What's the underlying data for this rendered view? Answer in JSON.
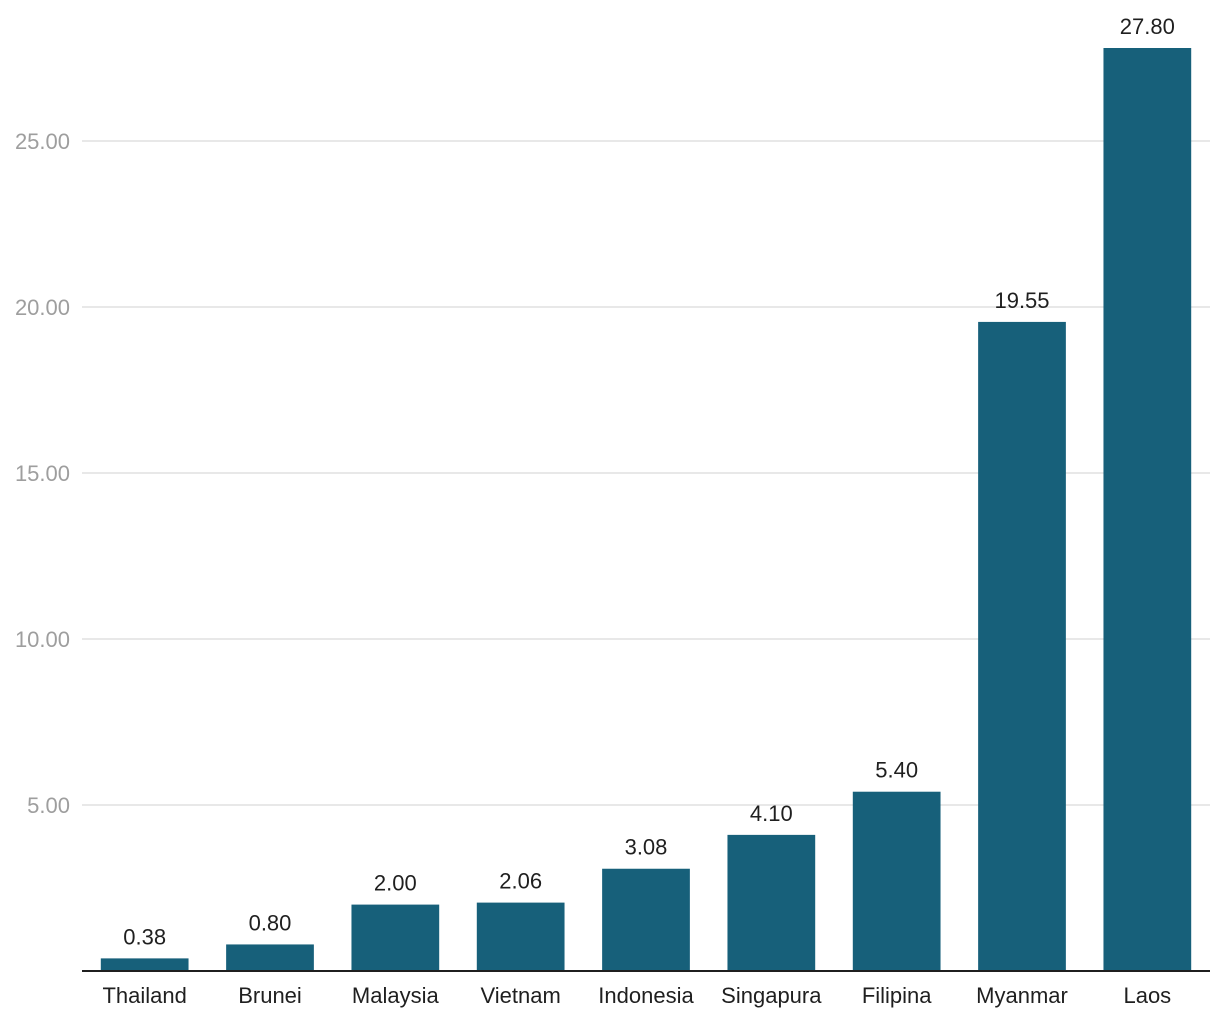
{
  "chart_data": {
    "type": "bar",
    "categories": [
      "Thailand",
      "Brunei",
      "Malaysia",
      "Vietnam",
      "Indonesia",
      "Singapura",
      "Filipina",
      "Myanmar",
      "Laos"
    ],
    "values": [
      0.38,
      0.8,
      2.0,
      2.06,
      3.08,
      4.1,
      5.4,
      19.55,
      27.8
    ],
    "value_labels": [
      "0.38",
      "0.80",
      "2.00",
      "2.06",
      "3.08",
      "4.10",
      "5.40",
      "19.55",
      "27.80"
    ],
    "yticks": [
      5,
      10,
      15,
      20,
      25
    ],
    "ytick_labels": [
      "5.00",
      "10.00",
      "15.00",
      "20.00",
      "25.00"
    ],
    "ylim": [
      0,
      27.8
    ],
    "grid": true,
    "title": "",
    "xlabel": "",
    "ylabel": "",
    "colors": {
      "bar": "#17607a",
      "grid": "#e0e0e0",
      "tick_text": "#9e9e9e",
      "label_text": "#1f1f1f"
    }
  }
}
